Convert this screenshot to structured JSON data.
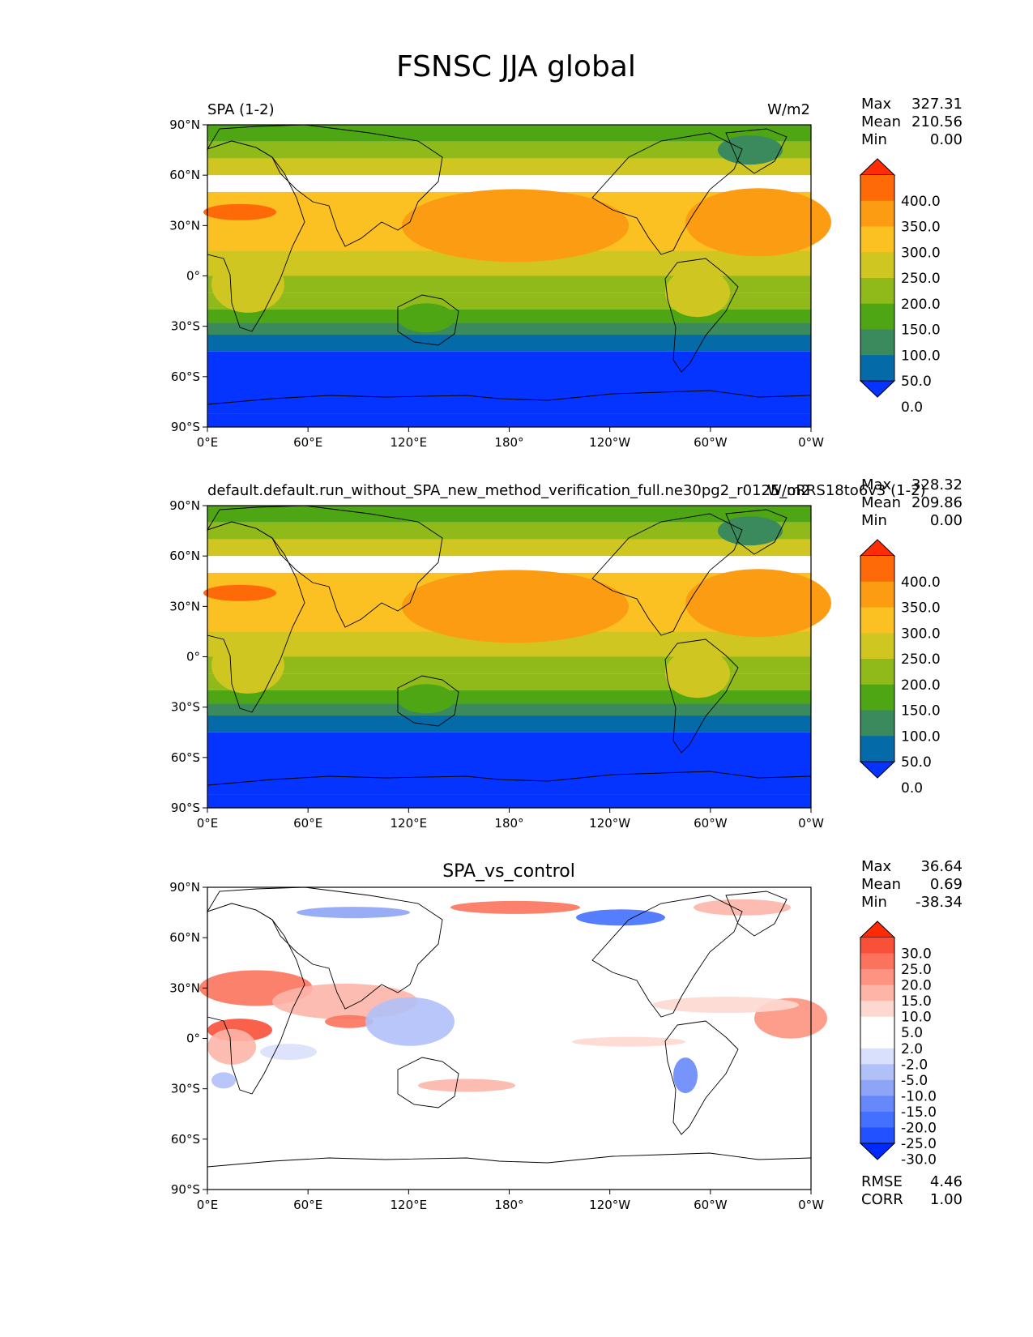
{
  "figure": {
    "title": "FSNSC JJA global"
  },
  "axes_ticks": {
    "lat": [
      "90°N",
      "60°N",
      "30°N",
      "0°",
      "30°S",
      "60°S",
      "90°S"
    ],
    "lon": [
      "0°E",
      "60°E",
      "120°E",
      "180°",
      "120°W",
      "60°W",
      "0°W"
    ]
  },
  "colors": {
    "abs_levels": [
      "#0533ff",
      "#046ba8",
      "#3a8a5e",
      "#4ea614",
      "#8fba1a",
      "#cfc622",
      "#fbc021",
      "#fb9c13",
      "#fe6a08",
      "#ff2d05"
    ],
    "diff_levels": [
      "#0029ff",
      "#2251ff",
      "#4370ff",
      "#6788fa",
      "#8ea4f6",
      "#b0c0f9",
      "#d8e0fb",
      "#ffffff",
      "#ffffff",
      "#fdd8d0",
      "#fdb5a8",
      "#fd9380",
      "#fb735d",
      "#f85039",
      "#ff2b04"
    ]
  },
  "panels": [
    {
      "left_title": "SPA (1-2)",
      "units": "W/m2",
      "center_title": "",
      "stats": [
        {
          "label": "Max",
          "value": "327.31"
        },
        {
          "label": "Mean",
          "value": "210.56"
        },
        {
          "label": "Min",
          "value": "0.00"
        }
      ],
      "colorbar_labels": [
        "400.0",
        "350.0",
        "300.0",
        "250.0",
        "200.0",
        "150.0",
        "100.0",
        "50.0",
        "0.0"
      ]
    },
    {
      "left_title": "default.default.run_without_SPA_new_method_verification_full.ne30pg2_r0125_oRRS18to6v3 (1-2)",
      "units": "W/m2",
      "center_title": "",
      "stats": [
        {
          "label": "Max",
          "value": "328.32"
        },
        {
          "label": "Mean",
          "value": "209.86"
        },
        {
          "label": "Min",
          "value": "0.00"
        }
      ],
      "colorbar_labels": [
        "400.0",
        "350.0",
        "300.0",
        "250.0",
        "200.0",
        "150.0",
        "100.0",
        "50.0",
        "0.0"
      ]
    },
    {
      "left_title": "",
      "units": "",
      "center_title": "SPA_vs_control",
      "stats": [
        {
          "label": "Max",
          "value": "36.64"
        },
        {
          "label": "Mean",
          "value": "0.69"
        },
        {
          "label": "Min",
          "value": "-38.34"
        }
      ],
      "colorbar_labels": [
        "30.0",
        "25.0",
        "20.0",
        "15.0",
        "10.0",
        "5.0",
        "2.0",
        "-2.0",
        "-5.0",
        "-10.0",
        "-15.0",
        "-20.0",
        "-25.0",
        "-30.0"
      ],
      "extra_stats": [
        {
          "label": "RMSE",
          "value": "4.46"
        },
        {
          "label": "CORR",
          "value": "1.00"
        }
      ]
    }
  ],
  "chart_data": [
    {
      "type": "heatmap",
      "title": "SPA (1-2)",
      "units": "W/m2",
      "projection": "plate carree, centered 180°",
      "xlim": [
        0,
        360
      ],
      "ylim": [
        -90,
        90
      ],
      "levels": [
        0,
        50,
        100,
        150,
        200,
        250,
        300,
        350,
        400
      ],
      "zonal_bands": [
        {
          "lat": [
            80,
            90
          ],
          "level": 150
        },
        {
          "lat": [
            70,
            80
          ],
          "level": 200
        },
        {
          "lat": [
            60,
            70
          ],
          "level": 250
        },
        {
          "lat": [
            15,
            50
          ],
          "level": 300
        },
        {
          "lat": [
            0,
            15
          ],
          "level": 250
        },
        {
          "lat": [
            -10,
            0
          ],
          "level": 200
        },
        {
          "lat": [
            -20,
            -10
          ],
          "level": 200
        },
        {
          "lat": [
            -28,
            -20
          ],
          "level": 150
        },
        {
          "lat": [
            -35,
            -28
          ],
          "level": 100
        },
        {
          "lat": [
            -45,
            -35
          ],
          "level": 50
        },
        {
          "lat": [
            -82,
            -45
          ],
          "level": 0
        },
        {
          "lat": [
            -90,
            -82
          ],
          "level": 0
        }
      ],
      "stats": {
        "max": 327.31,
        "mean": 210.56,
        "min": 0.0
      }
    },
    {
      "type": "heatmap",
      "title": "default.default.run_without_SPA_new_method_verification_full.ne30pg2_r0125_oRRS18to6v3 (1-2)",
      "units": "W/m2",
      "projection": "plate carree, centered 180°",
      "xlim": [
        0,
        360
      ],
      "ylim": [
        -90,
        90
      ],
      "levels": [
        0,
        50,
        100,
        150,
        200,
        250,
        300,
        350,
        400
      ],
      "stats": {
        "max": 328.32,
        "mean": 209.86,
        "min": 0.0
      }
    },
    {
      "type": "heatmap",
      "title": "SPA_vs_control",
      "projection": "plate carree, centered 180°",
      "xlim": [
        0,
        360
      ],
      "ylim": [
        -90,
        90
      ],
      "levels": [
        -30,
        -25,
        -20,
        -15,
        -10,
        -5,
        -2,
        2,
        5,
        10,
        15,
        20,
        25,
        30
      ],
      "stats": {
        "max": 36.64,
        "mean": 0.69,
        "min": -38.34,
        "rmse": 4.46,
        "corr": 1.0
      }
    }
  ]
}
